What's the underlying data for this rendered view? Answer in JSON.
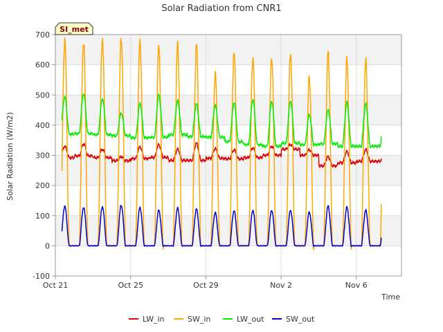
{
  "chart_data": {
    "type": "line",
    "title": "Solar Radiation from CNR1",
    "xlabel": "Time",
    "ylabel": "Solar Radiation (W/m2)",
    "badge": "SI_met",
    "ylim": [
      -100,
      700
    ],
    "yticks": [
      -100,
      0,
      100,
      200,
      300,
      400,
      500,
      600,
      700
    ],
    "xlim": [
      0,
      18.4
    ],
    "xticks": [
      {
        "x": 0,
        "label": "Oct 21"
      },
      {
        "x": 4,
        "label": "Oct 25"
      },
      {
        "x": 8,
        "label": "Oct 29"
      },
      {
        "x": 12,
        "label": "Nov 2"
      },
      {
        "x": 16,
        "label": "Nov 6"
      }
    ],
    "grid": true,
    "legend_position": "bottom",
    "days": 17,
    "series": [
      {
        "name": "LW_in",
        "color": "#dd0000",
        "baseline": [
          292,
          298,
          292,
          282,
          289,
          293,
          283,
          283,
          290,
          288,
          292,
          300,
          320,
          300,
          265,
          275,
          280
        ],
        "peak": [
          330,
          338,
          320,
          295,
          328,
          335,
          320,
          340,
          322,
          318,
          325,
          330,
          335,
          318,
          295,
          312,
          318
        ]
      },
      {
        "name": "SW_in",
        "color": "#ffa500",
        "baseline": [
          0,
          0,
          0,
          0,
          0,
          0,
          0,
          0,
          0,
          0,
          0,
          0,
          0,
          0,
          0,
          0,
          0
        ],
        "peak": [
          685,
          680,
          690,
          692,
          678,
          660,
          665,
          665,
          570,
          645,
          625,
          628,
          640,
          560,
          640,
          615,
          612
        ]
      },
      {
        "name": "LW_out",
        "color": "#00ee00",
        "baseline": [
          370,
          372,
          368,
          365,
          358,
          360,
          368,
          362,
          360,
          345,
          335,
          330,
          340,
          335,
          338,
          330,
          330
        ],
        "peak": [
          495,
          505,
          488,
          440,
          472,
          500,
          480,
          470,
          465,
          475,
          485,
          480,
          480,
          435,
          450,
          475,
          470
        ]
      },
      {
        "name": "SW_out",
        "color": "#0000cc",
        "baseline": [
          0,
          0,
          0,
          0,
          0,
          0,
          0,
          0,
          0,
          0,
          0,
          0,
          0,
          0,
          0,
          0,
          0
        ],
        "peak": [
          132,
          128,
          130,
          135,
          127,
          118,
          125,
          122,
          110,
          117,
          118,
          118,
          118,
          112,
          132,
          128,
          118
        ]
      }
    ]
  }
}
